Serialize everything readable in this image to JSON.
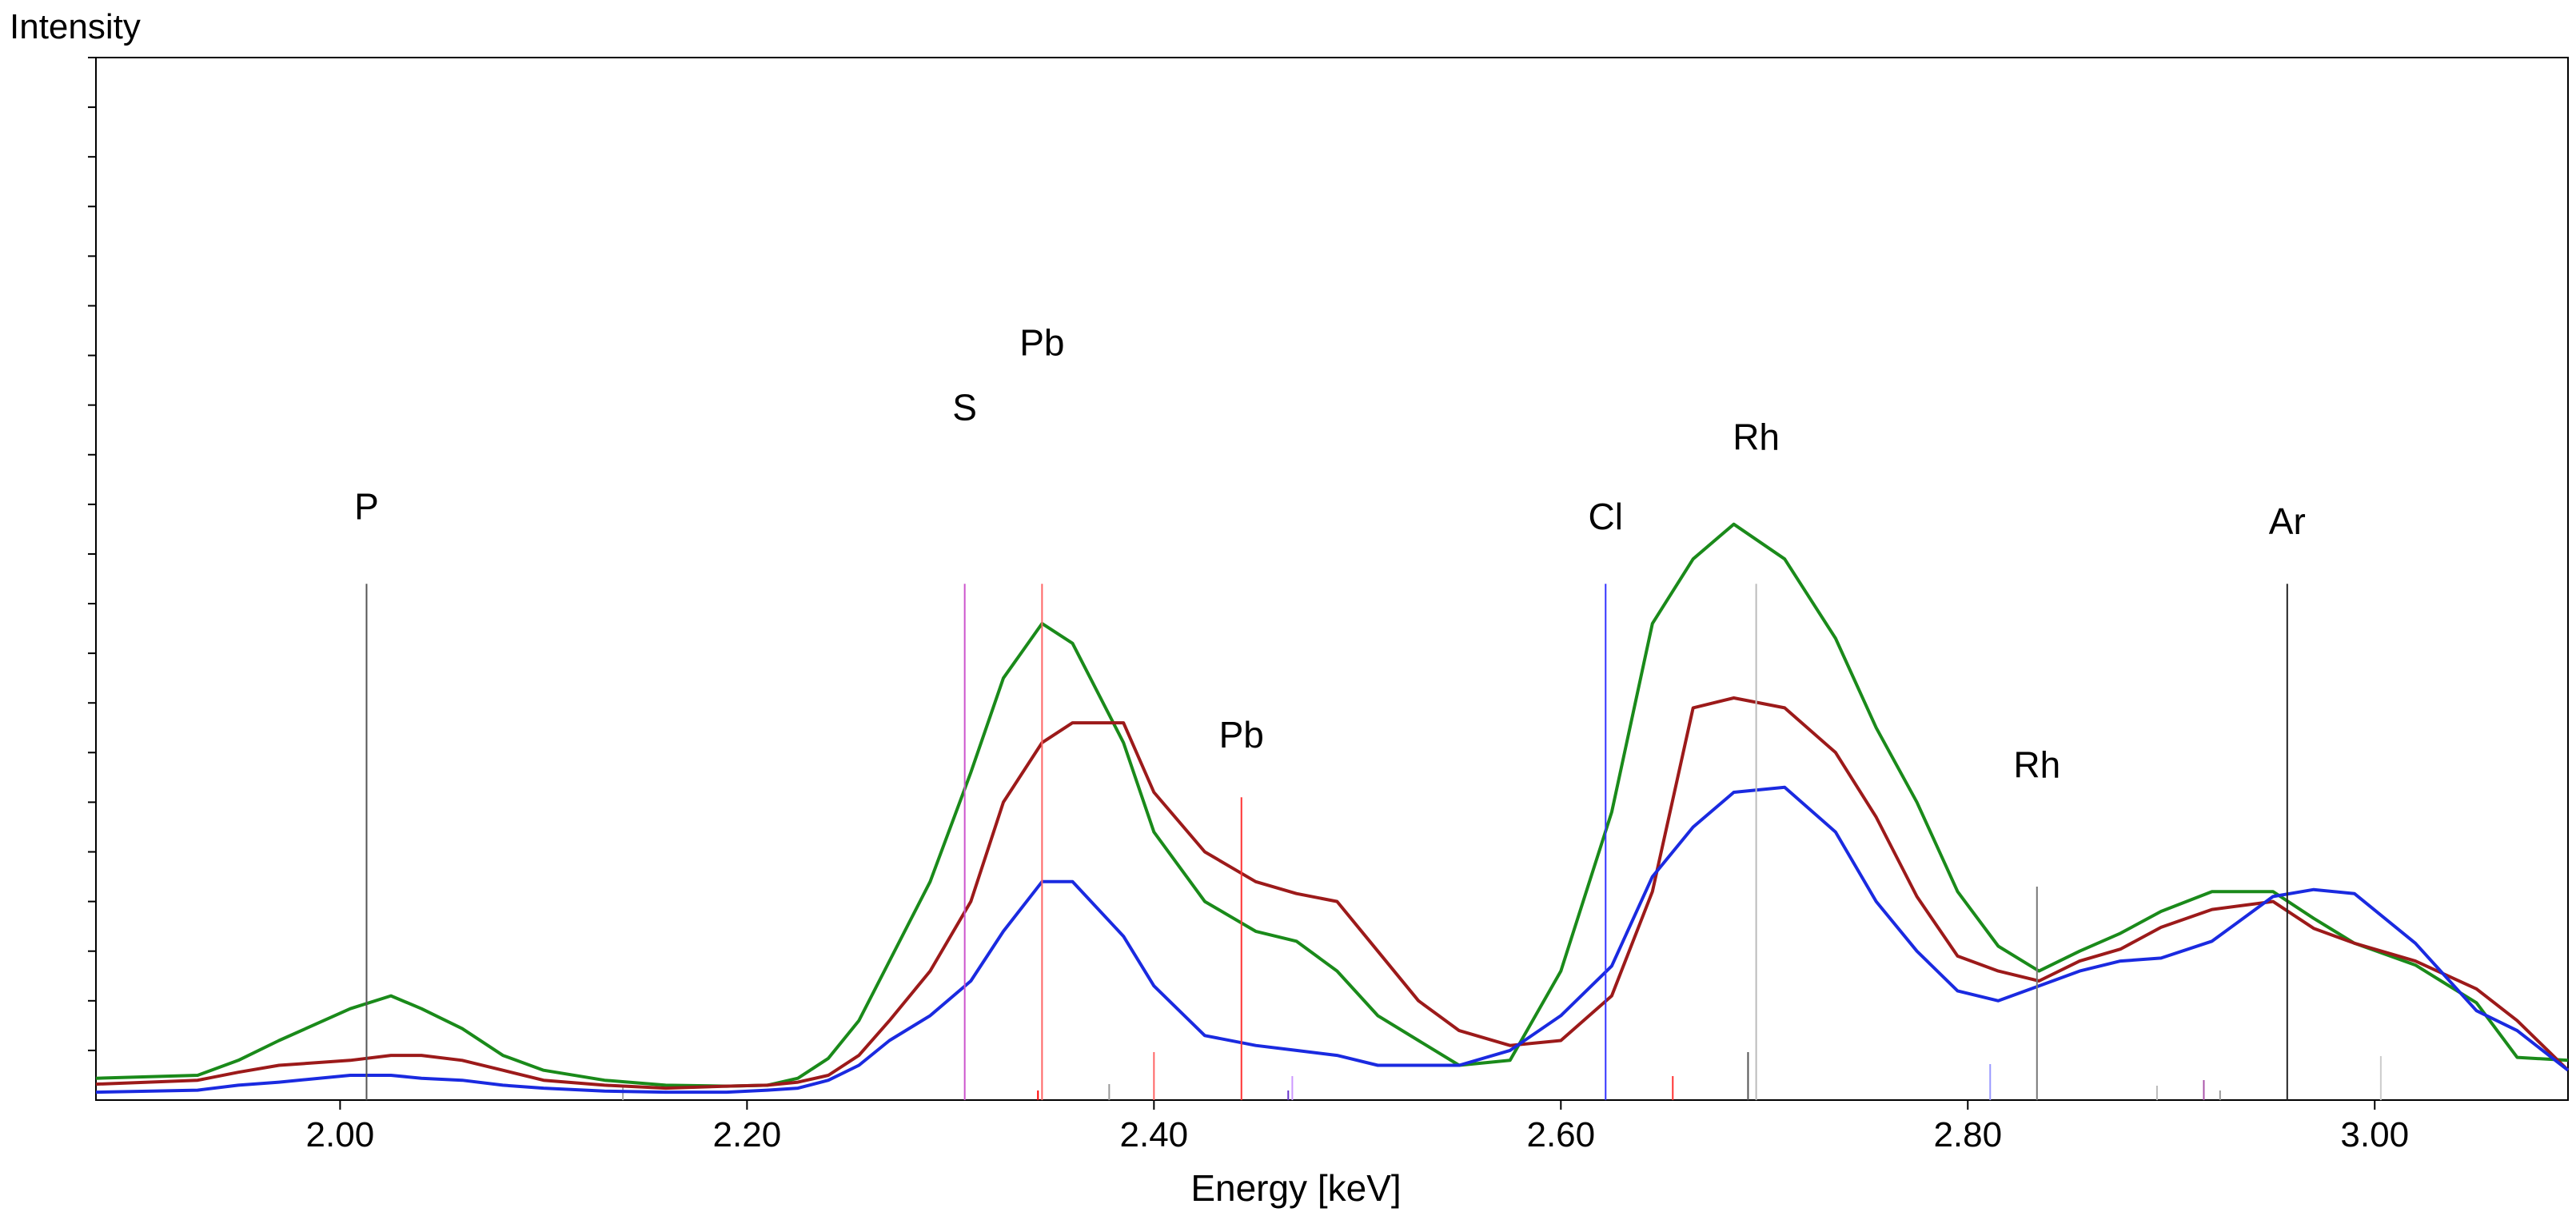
{
  "chart_data": {
    "type": "line",
    "ylabel": "Intensity",
    "xlabel": "Energy [keV]",
    "xlim": [
      1.88,
      3.095
    ],
    "ylim": [
      0,
      1050
    ],
    "grid": false,
    "x_ticks": [
      {
        "value": 2.0,
        "label": "2.00"
      },
      {
        "value": 2.2,
        "label": "2.20"
      },
      {
        "value": 2.4,
        "label": "2.40"
      },
      {
        "value": 2.6,
        "label": "2.60"
      },
      {
        "value": 2.8,
        "label": "2.80"
      },
      {
        "value": 3.0,
        "label": "3.00"
      }
    ],
    "y_minor_ticks": [
      50,
      100,
      150,
      200,
      250,
      300,
      350,
      400,
      450,
      500,
      550,
      600,
      650,
      700,
      750,
      800,
      850,
      900,
      950,
      1000,
      1050
    ],
    "series": [
      {
        "name": "green",
        "color": "#1a8a1a",
        "x": [
          1.88,
          1.93,
          1.95,
          1.97,
          2.005,
          2.025,
          2.04,
          2.06,
          2.08,
          2.1,
          2.13,
          2.16,
          2.19,
          2.21,
          2.225,
          2.24,
          2.255,
          2.27,
          2.29,
          2.31,
          2.326,
          2.345,
          2.36,
          2.385,
          2.4,
          2.425,
          2.45,
          2.47,
          2.49,
          2.51,
          2.53,
          2.55,
          2.575,
          2.6,
          2.625,
          2.645,
          2.665,
          2.685,
          2.71,
          2.735,
          2.755,
          2.775,
          2.795,
          2.815,
          2.835,
          2.855,
          2.875,
          2.895,
          2.92,
          2.95,
          2.97,
          2.99,
          3.02,
          3.05,
          3.07,
          3.095
        ],
        "y": [
          22,
          25,
          40,
          60,
          92,
          105,
          92,
          72,
          45,
          30,
          20,
          15,
          14,
          15,
          22,
          42,
          80,
          140,
          220,
          330,
          425,
          480,
          460,
          360,
          270,
          200,
          170,
          160,
          130,
          85,
          60,
          35,
          40,
          130,
          290,
          480,
          545,
          580,
          545,
          465,
          375,
          300,
          210,
          155,
          130,
          150,
          168,
          190,
          210,
          210,
          183,
          158,
          136,
          98,
          43,
          40
        ]
      },
      {
        "name": "red",
        "color": "#9c1a1a",
        "x": [
          1.88,
          1.93,
          1.95,
          1.97,
          2.005,
          2.025,
          2.04,
          2.06,
          2.08,
          2.1,
          2.13,
          2.16,
          2.19,
          2.21,
          2.225,
          2.24,
          2.255,
          2.27,
          2.29,
          2.31,
          2.326,
          2.345,
          2.36,
          2.385,
          2.4,
          2.425,
          2.45,
          2.47,
          2.49,
          2.51,
          2.53,
          2.55,
          2.575,
          2.6,
          2.625,
          2.645,
          2.665,
          2.685,
          2.71,
          2.735,
          2.755,
          2.775,
          2.795,
          2.815,
          2.835,
          2.855,
          2.875,
          2.895,
          2.92,
          2.95,
          2.97,
          2.99,
          3.02,
          3.05,
          3.07,
          3.095
        ],
        "y": [
          16,
          20,
          28,
          35,
          40,
          45,
          45,
          40,
          30,
          20,
          15,
          12,
          14,
          15,
          18,
          25,
          45,
          80,
          130,
          200,
          300,
          360,
          380,
          380,
          310,
          250,
          220,
          208,
          200,
          150,
          100,
          70,
          55,
          60,
          105,
          210,
          395,
          405,
          395,
          350,
          285,
          205,
          145,
          130,
          120,
          140,
          152,
          174,
          192,
          200,
          173,
          158,
          140,
          112,
          80,
          30
        ]
      },
      {
        "name": "blue",
        "color": "#1a2ae0",
        "x": [
          1.88,
          1.93,
          1.95,
          1.97,
          2.005,
          2.025,
          2.04,
          2.06,
          2.08,
          2.1,
          2.13,
          2.16,
          2.19,
          2.21,
          2.225,
          2.24,
          2.255,
          2.27,
          2.29,
          2.31,
          2.326,
          2.345,
          2.36,
          2.385,
          2.4,
          2.425,
          2.45,
          2.47,
          2.49,
          2.51,
          2.53,
          2.55,
          2.575,
          2.6,
          2.625,
          2.645,
          2.665,
          2.685,
          2.71,
          2.735,
          2.755,
          2.775,
          2.795,
          2.815,
          2.835,
          2.855,
          2.875,
          2.895,
          2.92,
          2.95,
          2.97,
          2.99,
          3.02,
          3.05,
          3.07,
          3.095
        ],
        "y": [
          8,
          10,
          15,
          18,
          25,
          25,
          22,
          20,
          15,
          12,
          9,
          8,
          8,
          10,
          12,
          20,
          35,
          60,
          85,
          120,
          170,
          220,
          220,
          165,
          115,
          65,
          55,
          50,
          45,
          35,
          35,
          35,
          50,
          85,
          135,
          225,
          275,
          310,
          315,
          270,
          200,
          150,
          110,
          100,
          115,
          130,
          140,
          143,
          160,
          205,
          212,
          208,
          158,
          90,
          70,
          30
        ]
      }
    ],
    "annotations": [
      {
        "element": "P",
        "energy": 2.013,
        "line_top": 520,
        "label_y": 585,
        "color": "#555555",
        "line": true
      },
      {
        "element": "S",
        "energy": 2.307,
        "line_top": 520,
        "label_y": 685,
        "color": "#cc55cc",
        "line": true
      },
      {
        "element": "Pb",
        "energy": 2.345,
        "line_top": 520,
        "label_y": 750,
        "color": "#ff6666",
        "line": true
      },
      {
        "element": "Pb",
        "energy": 2.443,
        "line_top": 305,
        "label_y": 355,
        "color": "#ff3333",
        "line": true
      },
      {
        "element": "Cl",
        "energy": 2.622,
        "line_top": 520,
        "label_y": 575,
        "color": "#3333ff",
        "line": true
      },
      {
        "element": "Rh",
        "energy": 2.696,
        "line_top": 520,
        "label_y": 655,
        "color": "#bbbbbb",
        "line": true
      },
      {
        "element": "Rh",
        "energy": 2.834,
        "line_top": 215,
        "label_y": 325,
        "color": "#777777",
        "line": true
      },
      {
        "element": "Ar",
        "energy": 2.957,
        "line_top": 520,
        "label_y": 570,
        "color": "#222222",
        "line": true
      }
    ],
    "minor_marker_lines": [
      {
        "energy": 2.139,
        "height": 18,
        "color": "#aaaaaa"
      },
      {
        "energy": 2.378,
        "height": 20,
        "color": "#999999"
      },
      {
        "energy": 2.343,
        "height": 12,
        "color": "#ff0000"
      },
      {
        "energy": 2.4,
        "height": 60,
        "color": "#ff6666"
      },
      {
        "energy": 2.466,
        "height": 12,
        "color": "#6633cc"
      },
      {
        "energy": 2.468,
        "height": 30,
        "color": "#cc99ff"
      },
      {
        "energy": 2.655,
        "height": 30,
        "color": "#ff3333"
      },
      {
        "energy": 2.692,
        "height": 60,
        "color": "#555555"
      },
      {
        "energy": 2.811,
        "height": 45,
        "color": "#9999ff"
      },
      {
        "energy": 2.893,
        "height": 18,
        "color": "#bbbbbb"
      },
      {
        "energy": 2.916,
        "height": 25,
        "color": "#aa55aa"
      },
      {
        "energy": 3.003,
        "height": 55,
        "color": "#cccccc"
      },
      {
        "energy": 2.924,
        "height": 12,
        "color": "#999999"
      }
    ]
  }
}
